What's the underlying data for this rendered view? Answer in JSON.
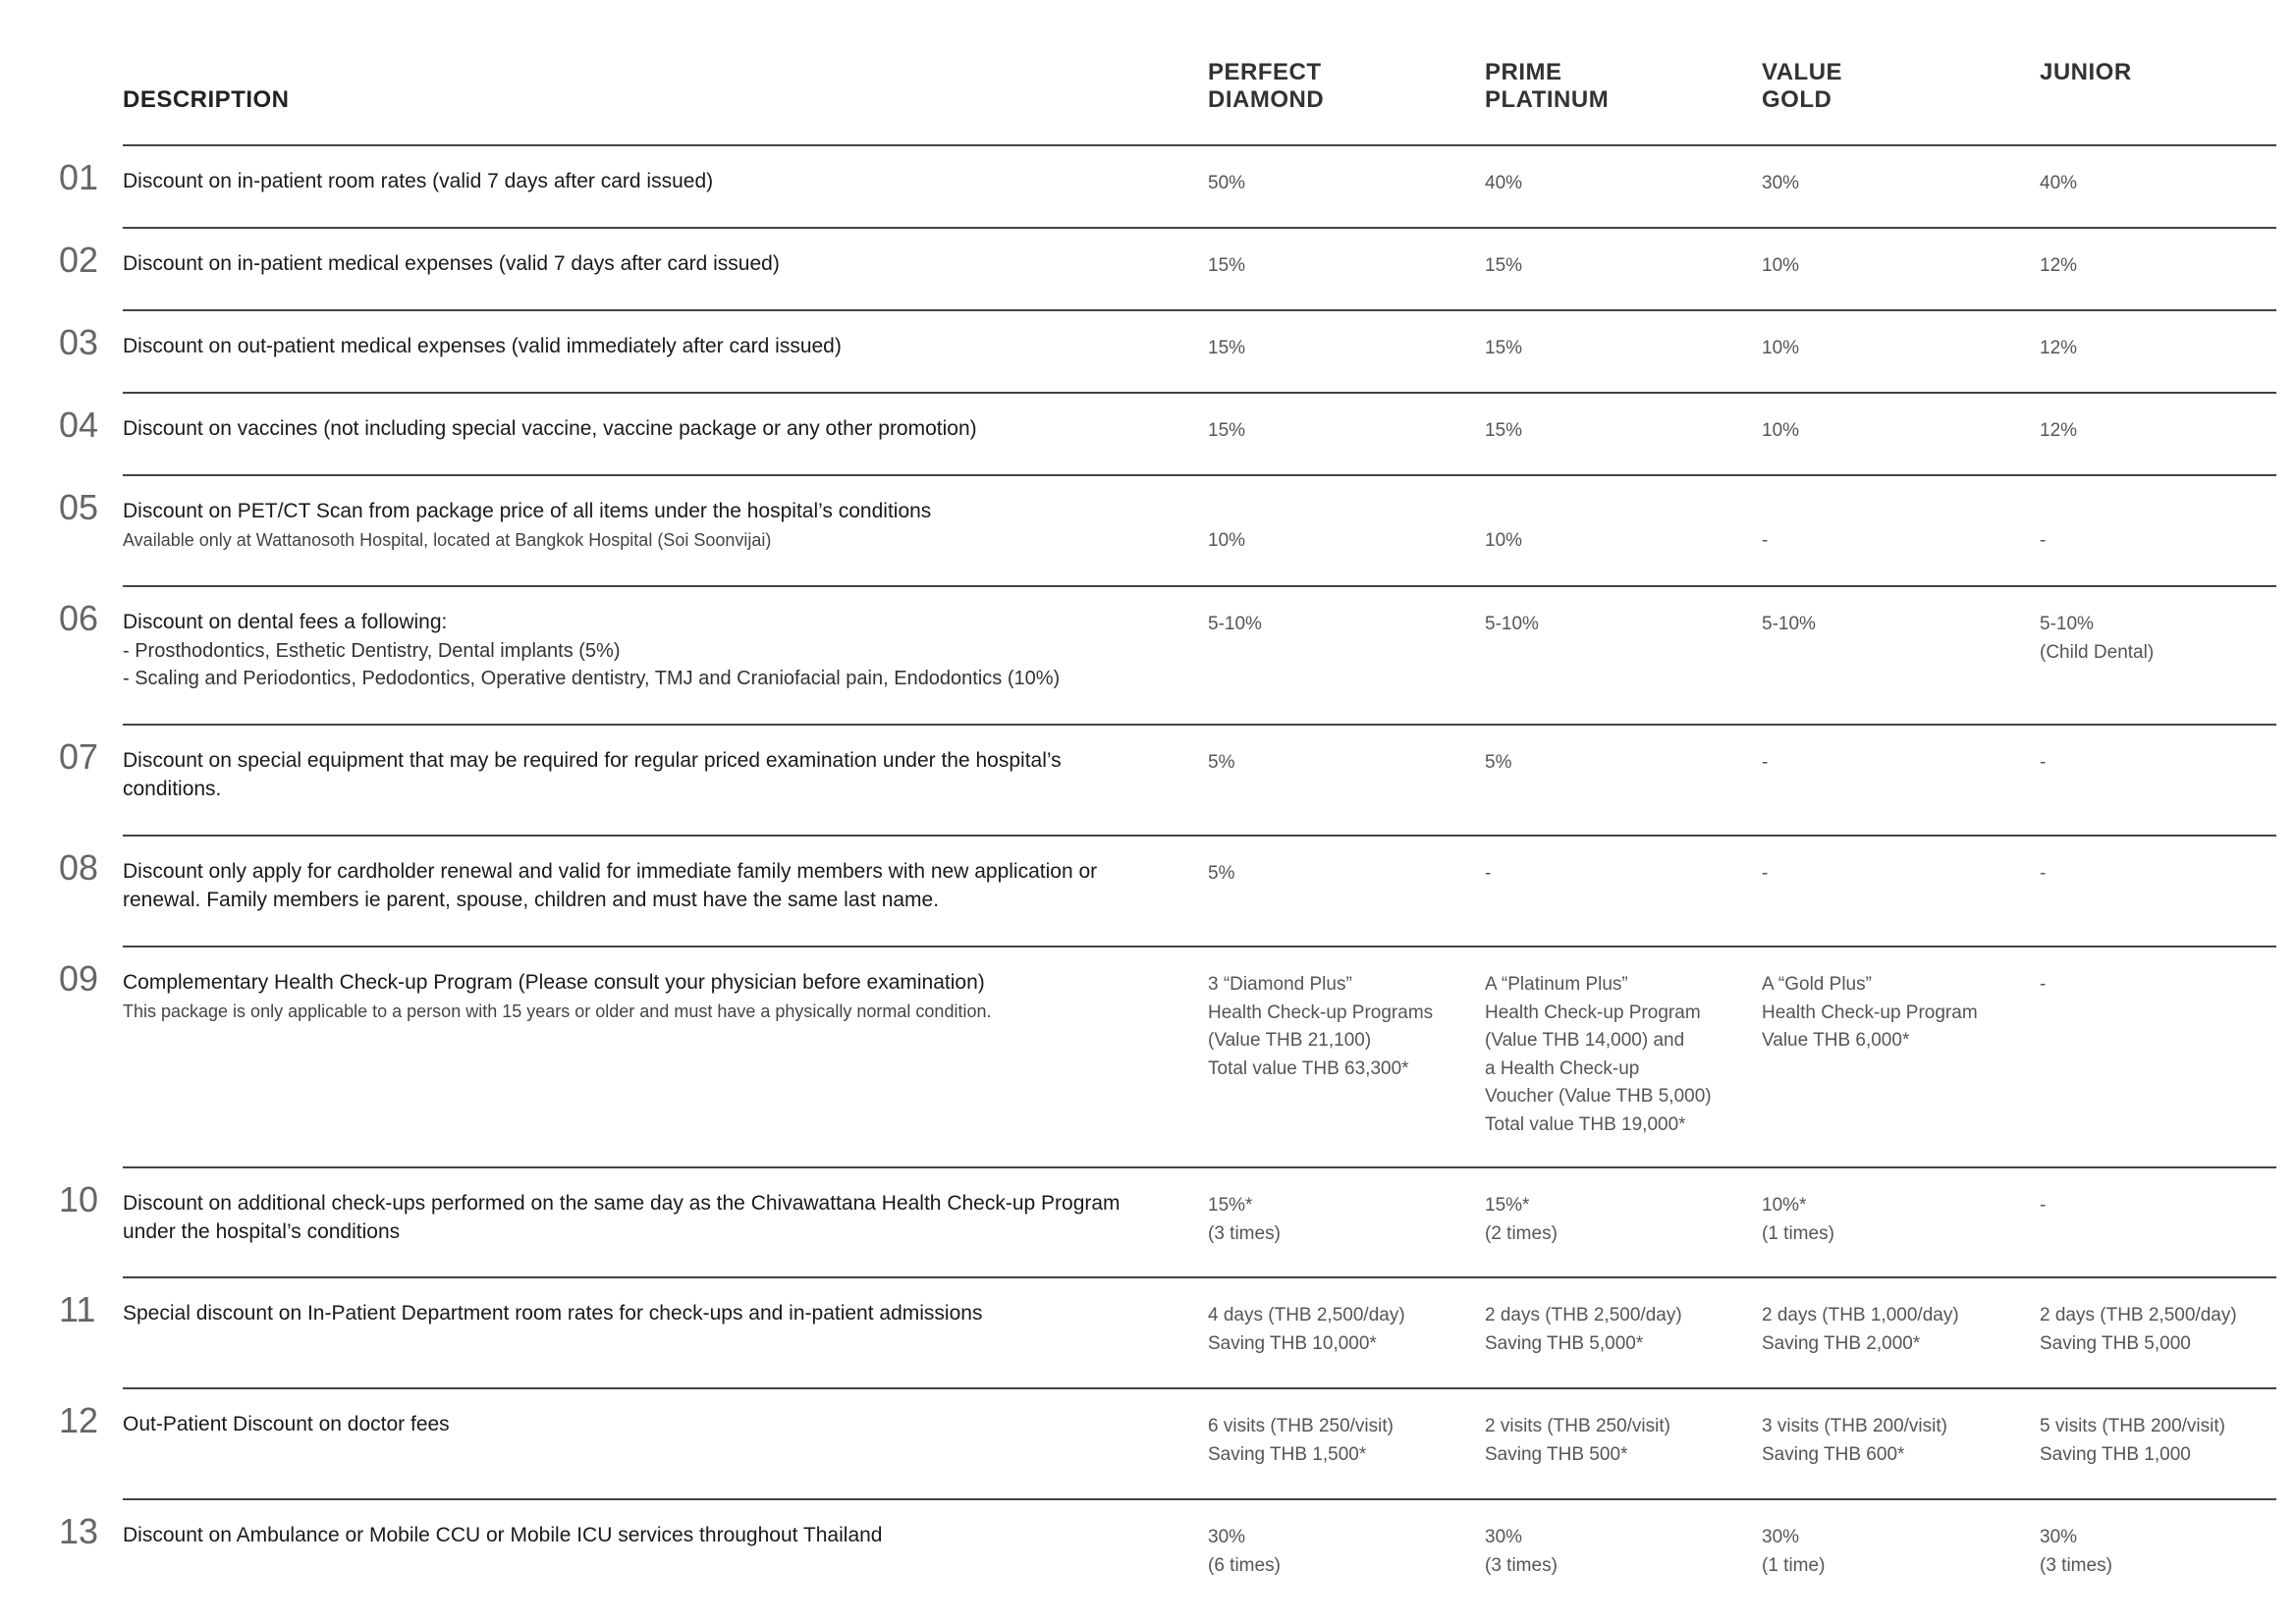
{
  "header": {
    "description": "DESCRIPTION",
    "tiers": [
      [
        "PERFECT",
        "DIAMOND"
      ],
      [
        "PRIME",
        "PLATINUM"
      ],
      [
        "VALUE",
        "GOLD"
      ],
      [
        "JUNIOR",
        ""
      ]
    ]
  },
  "rows": [
    {
      "num": "01",
      "title": "Discount on in-patient room rates (valid 7 days after card issued)",
      "sub": "",
      "values": [
        "50%",
        "40%",
        "30%",
        "40%"
      ]
    },
    {
      "num": "02",
      "title": "Discount on in-patient medical expenses (valid 7 days after card issued)",
      "sub": "",
      "values": [
        "15%",
        "15%",
        "10%",
        "12%"
      ]
    },
    {
      "num": "03",
      "title": "Discount on out-patient medical expenses (valid immediately after card issued)",
      "sub": "",
      "values": [
        "15%",
        "15%",
        "10%",
        "12%"
      ]
    },
    {
      "num": "04",
      "title": "Discount on vaccines (not including special vaccine, vaccine package or any other promotion)",
      "sub": "",
      "values": [
        "15%",
        "15%",
        "10%",
        "12%"
      ]
    },
    {
      "num": "05",
      "title": "Discount on PET/CT Scan from package price of all items under the hospital’s conditions",
      "sub": "Available only at Wattanosoth Hospital, located at Bangkok Hospital (Soi Soonvijai)",
      "values": [
        "10%",
        "10%",
        "-",
        "-"
      ]
    },
    {
      "num": "06",
      "title": "Discount on dental fees a following:",
      "sub": "-  Prosthodontics, Esthetic Dentistry, Dental implants (5%)\n-  Scaling and Periodontics, Pedodontics, Operative dentistry, TMJ and Craniofacial pain, Endodontics (10%)",
      "values": [
        "5-10%",
        "5-10%",
        "5-10%",
        "5-10%\n(Child Dental)"
      ]
    },
    {
      "num": "07",
      "title": "Discount on special equipment that may be required for regular priced examination under the hospital’s conditions.",
      "sub": "",
      "values": [
        "5%",
        "5%",
        "-",
        "-"
      ]
    },
    {
      "num": "08",
      "title": "Discount only apply for cardholder renewal and valid for immediate family members with new application or renewal. Family members ie parent, spouse, children and must have the same last name.",
      "sub": "",
      "values": [
        "5%",
        "-",
        "-",
        "-"
      ]
    },
    {
      "num": "09",
      "title": "Complementary Health Check-up Program (Please consult your physician before examination)",
      "sub": "This package is only applicable to a person with 15 years or older and must have a physically normal condition.",
      "values": [
        "3 “Diamond Plus”\nHealth Check-up Programs\n(Value THB 21,100)\nTotal value THB 63,300*",
        "A “Platinum Plus”\nHealth Check-up Program\n(Value THB 14,000) and\na Health Check-up\nVoucher (Value THB 5,000)\nTotal value THB 19,000*",
        "A “Gold Plus”\nHealth Check-up Program\nValue THB 6,000*",
        "-"
      ]
    },
    {
      "num": "10",
      "title": "Discount on additional check-ups performed on the same day as the Chivawattana Health Check-up Program under the hospital’s conditions",
      "sub": "",
      "values": [
        "15%*\n(3 times)",
        "15%*\n(2 times)",
        "10%*\n(1 times)",
        "-"
      ]
    },
    {
      "num": "11",
      "title": "Special discount on In-Patient Department room rates for check-ups and in-patient admissions",
      "sub": "",
      "values": [
        "4 days (THB 2,500/day)\nSaving THB 10,000*",
        "2 days (THB 2,500/day)\nSaving THB 5,000*",
        "2 days (THB 1,000/day)\nSaving THB 2,000*",
        "2 days (THB 2,500/day)\nSaving THB 5,000"
      ]
    },
    {
      "num": "12",
      "title": "Out-Patient Discount on doctor fees",
      "sub": "",
      "values": [
        "6 visits (THB 250/visit)\nSaving THB 1,500*",
        "2 visits (THB 250/visit)\nSaving THB 500*",
        "3 visits (THB 200/visit)\nSaving THB 600*",
        "5 visits (THB 200/visit)\nSaving THB 1,000"
      ]
    },
    {
      "num": "13",
      "title": "Discount on Ambulance or Mobile CCU or Mobile ICU services throughout Thailand",
      "sub": "",
      "values": [
        "30%\n(6 times)",
        "30%\n(3 times)",
        "30%\n(1 time)",
        "30%\n(3 times)"
      ]
    }
  ]
}
